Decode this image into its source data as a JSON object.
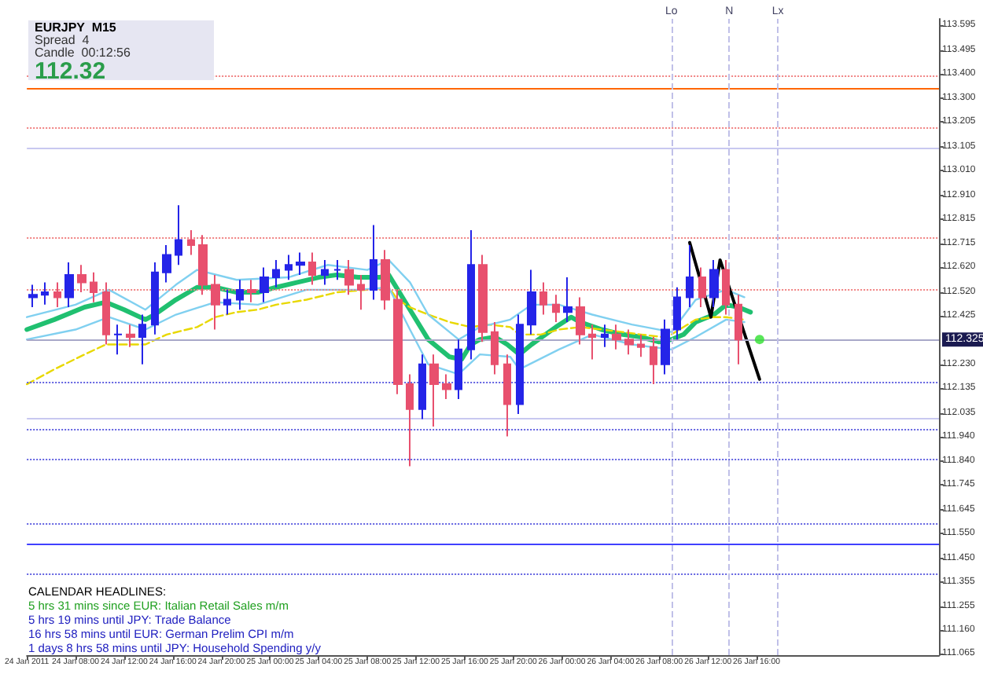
{
  "chart_data": {
    "type": "candlestick",
    "title": "EURJPY  M15",
    "annotations": [
      "Spread  4",
      "Candle  00:12:56",
      "112.32",
      "CALENDAR HEADLINES:",
      "5 hrs 31 mins since EUR: Italian Retail Sales m/m",
      "5 hrs 19 mins until JPY: Trade Balance",
      "16 hrs 58 mins until EUR: German Prelim CPI m/m",
      "1 days 8 hrs 58 mins until JPY: Household Spending y/y"
    ],
    "xlim": [
      "2011-01-24T04:00",
      "2011-01-27T07:00"
    ],
    "xticks": [
      {
        "value": "2011-01-24T04:00",
        "label": "24 Jan 2011"
      },
      {
        "value": "2011-01-24T08:00",
        "label": "24 Jan 08:00"
      },
      {
        "value": "2011-01-24T12:00",
        "label": "24 Jan 12:00"
      },
      {
        "value": "2011-01-24T16:00",
        "label": "24 Jan 16:00"
      },
      {
        "value": "2011-01-24T20:00",
        "label": "24 Jan 20:00"
      },
      {
        "value": "2011-01-25T00:00",
        "label": "25 Jan 00:00"
      },
      {
        "value": "2011-01-25T04:00",
        "label": "25 Jan 04:00"
      },
      {
        "value": "2011-01-25T08:00",
        "label": "25 Jan 08:00"
      },
      {
        "value": "2011-01-25T12:00",
        "label": "25 Jan 12:00"
      },
      {
        "value": "2011-01-25T16:00",
        "label": "25 Jan 16:00"
      },
      {
        "value": "2011-01-25T20:00",
        "label": "25 Jan 20:00"
      },
      {
        "value": "2011-01-26T00:00",
        "label": "26 Jan 00:00"
      },
      {
        "value": "2011-01-26T04:00",
        "label": "26 Jan 04:00"
      },
      {
        "value": "2011-01-26T08:00",
        "label": "26 Jan 08:00"
      },
      {
        "value": "2011-01-26T12:00",
        "label": "26 Jan 12:00"
      },
      {
        "value": "2011-01-26T16:00",
        "label": "26 Jan 16:00"
      }
    ],
    "ylim": [
      111.06,
      113.62
    ],
    "yticks": [
      {
        "value": 113.595,
        "label": "113.595"
      },
      {
        "value": 113.495,
        "label": "113.495"
      },
      {
        "value": 113.4,
        "label": "113.400"
      },
      {
        "value": 113.3,
        "label": "113.300"
      },
      {
        "value": 113.205,
        "label": "113.205"
      },
      {
        "value": 113.105,
        "label": "113.105"
      },
      {
        "value": 113.01,
        "label": "113.010"
      },
      {
        "value": 112.91,
        "label": "112.910"
      },
      {
        "value": 112.815,
        "label": "112.815"
      },
      {
        "value": 112.715,
        "label": "112.715"
      },
      {
        "value": 112.62,
        "label": "112.620"
      },
      {
        "value": 112.52,
        "label": "112.520"
      },
      {
        "value": 112.425,
        "label": "112.425"
      },
      {
        "value": 112.23,
        "label": "112.230"
      },
      {
        "value": 112.135,
        "label": "112.135"
      },
      {
        "value": 112.035,
        "label": "112.035"
      },
      {
        "value": 111.94,
        "label": "111.940"
      },
      {
        "value": 111.84,
        "label": "111.840"
      },
      {
        "value": 111.745,
        "label": "111.745"
      },
      {
        "value": 111.645,
        "label": "111.645"
      },
      {
        "value": 111.55,
        "label": "111.550"
      },
      {
        "value": 111.45,
        "label": "111.450"
      },
      {
        "value": 111.355,
        "label": "111.355"
      },
      {
        "value": 111.255,
        "label": "111.255"
      },
      {
        "value": 111.16,
        "label": "111.160"
      },
      {
        "value": 111.065,
        "label": "111.065"
      }
    ],
    "ref_lines": [
      {
        "axis": "y",
        "value": 113.39,
        "label": null,
        "color": "#f08080",
        "line_style": "dotted"
      },
      {
        "axis": "y",
        "value": 113.34,
        "label": null,
        "color": "#ff6600",
        "line_style": "solid"
      },
      {
        "axis": "y",
        "value": 113.18,
        "label": null,
        "color": "#f08080",
        "line_style": "dotted"
      },
      {
        "axis": "y",
        "value": 113.1,
        "label": null,
        "color": "#c8c8f0",
        "line_style": "solid"
      },
      {
        "axis": "y",
        "value": 112.74,
        "label": null,
        "color": "#f08080",
        "line_style": "dotted"
      },
      {
        "axis": "y",
        "value": 112.53,
        "label": null,
        "color": "#f08080",
        "line_style": "dotted"
      },
      {
        "axis": "y",
        "value": 112.325,
        "label": "112.325",
        "color": "#a8a8c8",
        "line_style": "solid"
      },
      {
        "axis": "y",
        "value": 112.16,
        "label": null,
        "color": "#6060e0",
        "line_style": "dotted"
      },
      {
        "axis": "y",
        "value": 112.01,
        "label": null,
        "color": "#c8c8f0",
        "line_style": "solid"
      },
      {
        "axis": "y",
        "value": 111.97,
        "label": null,
        "color": "#6060e0",
        "line_style": "dotted"
      },
      {
        "axis": "y",
        "value": 111.85,
        "label": null,
        "color": "#6060e0",
        "line_style": "dotted"
      },
      {
        "axis": "y",
        "value": 111.59,
        "label": null,
        "color": "#6060e0",
        "line_style": "dotted"
      },
      {
        "axis": "y",
        "value": 111.51,
        "label": null,
        "color": "#4040ff",
        "line_style": "solid"
      },
      {
        "axis": "y",
        "value": 111.39,
        "label": null,
        "color": "#6060e0",
        "line_style": "dotted"
      },
      {
        "axis": "x",
        "value": "2011-01-26T09:00",
        "label": "Lo",
        "color": "#c0c0e8",
        "line_style": "dashed"
      },
      {
        "axis": "x",
        "value": "2011-01-26T13:45",
        "label": "N",
        "color": "#c0c0e8",
        "line_style": "dashed"
      },
      {
        "axis": "x",
        "value": "2011-01-26T17:45",
        "label": "Lx",
        "color": "#c0c0e8",
        "line_style": "dashed"
      }
    ],
    "series": [
      {
        "x": [
          "2011-01-24T04:30",
          "2011-01-24T05:30",
          "2011-01-24T06:30",
          "2011-01-24T07:30",
          "2011-01-24T08:30",
          "2011-01-24T09:30",
          "2011-01-24T10:30",
          "2011-01-24T11:30",
          "2011-01-24T12:30",
          "2011-01-24T13:30",
          "2011-01-24T14:30",
          "2011-01-24T15:30",
          "2011-01-24T16:30",
          "2011-01-24T17:30",
          "2011-01-24T18:30",
          "2011-01-24T19:30",
          "2011-01-24T20:30",
          "2011-01-24T21:30",
          "2011-01-24T22:30",
          "2011-01-24T23:30",
          "2011-01-25T00:30",
          "2011-01-25T01:30",
          "2011-01-25T02:30",
          "2011-01-25T03:30",
          "2011-01-25T04:30",
          "2011-01-25T05:30",
          "2011-01-25T06:30",
          "2011-01-25T07:30",
          "2011-01-25T08:30",
          "2011-01-25T09:30",
          "2011-01-25T10:30",
          "2011-01-25T11:30",
          "2011-01-25T12:30",
          "2011-01-25T13:30",
          "2011-01-25T14:30",
          "2011-01-25T15:30",
          "2011-01-25T16:30",
          "2011-01-25T17:30",
          "2011-01-25T18:30",
          "2011-01-25T19:30",
          "2011-01-25T20:30",
          "2011-01-25T21:30",
          "2011-01-25T22:30",
          "2011-01-25T23:30",
          "2011-01-26T00:30",
          "2011-01-26T01:30",
          "2011-01-26T02:30",
          "2011-01-26T03:30",
          "2011-01-26T04:30",
          "2011-01-26T05:30",
          "2011-01-26T06:30",
          "2011-01-26T07:30",
          "2011-01-26T08:30",
          "2011-01-26T09:30",
          "2011-01-26T10:30",
          "2011-01-26T11:30",
          "2011-01-26T12:30",
          "2011-01-26T13:30",
          "2011-01-26T14:30"
        ],
        "ohlc": [
          [
            112.5,
            112.55,
            112.46,
            112.51
          ],
          [
            112.51,
            112.56,
            112.47,
            112.52
          ],
          [
            112.52,
            112.56,
            112.46,
            112.5
          ],
          [
            112.5,
            112.64,
            112.46,
            112.59
          ],
          [
            112.59,
            112.63,
            112.52,
            112.56
          ],
          [
            112.56,
            112.6,
            112.48,
            112.52
          ],
          [
            112.52,
            112.56,
            112.31,
            112.35
          ],
          [
            112.35,
            112.39,
            112.27,
            112.35
          ],
          [
            112.35,
            112.39,
            112.3,
            112.34
          ],
          [
            112.34,
            112.43,
            112.23,
            112.39
          ],
          [
            112.39,
            112.64,
            112.35,
            112.6
          ],
          [
            112.6,
            112.71,
            112.56,
            112.67
          ],
          [
            112.67,
            112.87,
            112.63,
            112.73
          ],
          [
            112.73,
            112.77,
            112.67,
            112.71
          ],
          [
            112.71,
            112.75,
            112.51,
            112.55
          ],
          [
            112.55,
            112.59,
            112.37,
            112.47
          ],
          [
            112.47,
            112.53,
            112.43,
            112.49
          ],
          [
            112.49,
            112.57,
            112.45,
            112.53
          ],
          [
            112.53,
            112.57,
            112.48,
            112.52
          ],
          [
            112.52,
            112.62,
            112.48,
            112.58
          ],
          [
            112.58,
            112.65,
            112.54,
            112.61
          ],
          [
            112.61,
            112.67,
            112.57,
            112.63
          ],
          [
            112.63,
            112.68,
            112.59,
            112.64
          ],
          [
            112.64,
            112.68,
            112.55,
            112.59
          ],
          [
            112.59,
            112.65,
            112.55,
            112.61
          ],
          [
            112.61,
            112.65,
            112.57,
            112.61
          ],
          [
            112.61,
            112.65,
            112.51,
            112.55
          ],
          [
            112.55,
            112.59,
            112.45,
            112.53
          ],
          [
            112.53,
            112.79,
            112.49,
            112.65
          ],
          [
            112.65,
            112.69,
            112.45,
            112.49
          ],
          [
            112.49,
            112.53,
            112.11,
            112.15
          ],
          [
            112.15,
            112.19,
            111.82,
            112.05
          ],
          [
            112.05,
            112.27,
            112.01,
            112.23
          ],
          [
            112.23,
            112.27,
            111.98,
            112.15
          ],
          [
            112.15,
            112.19,
            112.09,
            112.13
          ],
          [
            112.13,
            112.33,
            112.09,
            112.29
          ],
          [
            112.29,
            112.77,
            112.25,
            112.63
          ],
          [
            112.63,
            112.67,
            112.32,
            112.36
          ],
          [
            112.36,
            112.4,
            112.19,
            112.23
          ],
          [
            112.23,
            112.27,
            111.94,
            112.07
          ],
          [
            112.07,
            112.43,
            112.03,
            112.39
          ],
          [
            112.39,
            112.61,
            112.35,
            112.52
          ],
          [
            112.52,
            112.56,
            112.43,
            112.47
          ],
          [
            112.47,
            112.51,
            112.4,
            112.44
          ],
          [
            112.44,
            112.58,
            112.4,
            112.46
          ],
          [
            112.46,
            112.5,
            112.31,
            112.35
          ],
          [
            112.35,
            112.39,
            112.25,
            112.34
          ],
          [
            112.34,
            112.39,
            112.3,
            112.35
          ],
          [
            112.35,
            112.39,
            112.29,
            112.33
          ],
          [
            112.33,
            112.37,
            112.27,
            112.31
          ],
          [
            112.31,
            112.35,
            112.26,
            112.3
          ],
          [
            112.3,
            112.34,
            112.15,
            112.23
          ],
          [
            112.23,
            112.41,
            112.19,
            112.37
          ],
          [
            112.37,
            112.54,
            112.33,
            112.5
          ],
          [
            112.5,
            112.71,
            112.46,
            112.58
          ],
          [
            112.58,
            112.62,
            112.46,
            112.5
          ],
          [
            112.5,
            112.65,
            112.46,
            112.61
          ],
          [
            112.61,
            112.65,
            112.43,
            112.47
          ],
          [
            112.47,
            112.51,
            112.23,
            112.33
          ]
        ],
        "colors": [
          "#2424e8",
          "#2424e8",
          "#e8506e",
          "#2424e8",
          "#e8506e",
          "#e8506e",
          "#e8506e",
          "#2424e8",
          "#e8506e",
          "#2424e8",
          "#2424e8",
          "#2424e8",
          "#2424e8",
          "#e8506e",
          "#e8506e",
          "#e8506e",
          "#2424e8",
          "#2424e8",
          "#e8506e",
          "#2424e8",
          "#2424e8",
          "#2424e8",
          "#2424e8",
          "#e8506e",
          "#2424e8",
          "#2424e8",
          "#e8506e",
          "#e8506e",
          "#2424e8",
          "#e8506e",
          "#e8506e",
          "#e8506e",
          "#2424e8",
          "#e8506e",
          "#e8506e",
          "#2424e8",
          "#2424e8",
          "#e8506e",
          "#e8506e",
          "#e8506e",
          "#2424e8",
          "#2424e8",
          "#e8506e",
          "#e8506e",
          "#2424e8",
          "#e8506e",
          "#e8506e",
          "#2424e8",
          "#e8506e",
          "#e8506e",
          "#e8506e",
          "#e8506e",
          "#2424e8",
          "#2424e8",
          "#2424e8",
          "#e8506e",
          "#2424e8",
          "#e8506e",
          "#e8506e"
        ]
      },
      {
        "type": "line",
        "color": "#20c070",
        "line_style": "solid",
        "x": [
          "2011-01-24T04:00",
          "2011-01-24T06:15",
          "2011-01-24T08:45",
          "2011-01-24T10:30",
          "2011-01-24T12:00",
          "2011-01-24T13:45",
          "2011-01-24T14:30",
          "2011-01-24T16:15",
          "2011-01-24T18:00",
          "2011-01-24T19:30",
          "2011-01-24T21:15",
          "2011-01-24T23:00",
          "2011-01-25T00:30",
          "2011-01-25T02:15",
          "2011-01-25T04:00",
          "2011-01-25T05:30",
          "2011-01-25T07:15",
          "2011-01-25T09:00",
          "2011-01-25T09:45",
          "2011-01-25T10:30",
          "2011-01-25T11:30",
          "2011-01-25T13:00",
          "2011-01-25T14:45",
          "2011-01-25T15:45",
          "2011-01-25T16:30",
          "2011-01-25T17:15",
          "2011-01-25T18:30",
          "2011-01-25T19:30",
          "2011-01-25T20:30",
          "2011-01-25T21:30",
          "2011-01-25T23:30",
          "2011-01-26T00:45",
          "2011-01-26T01:30",
          "2011-01-26T03:15",
          "2011-01-26T05:00",
          "2011-01-26T06:30",
          "2011-01-26T08:00",
          "2011-01-26T09:00",
          "2011-01-26T10:00",
          "2011-01-26T11:00",
          "2011-01-26T12:30",
          "2011-01-26T13:30",
          "2011-01-26T14:30",
          "2011-01-26T15:30"
        ],
        "values": [
          112.37,
          112.41,
          112.46,
          112.48,
          112.45,
          112.41,
          112.43,
          112.49,
          112.54,
          112.54,
          112.52,
          112.52,
          112.54,
          112.56,
          112.58,
          112.59,
          112.58,
          112.58,
          112.59,
          112.53,
          112.45,
          112.33,
          112.26,
          112.25,
          112.31,
          112.33,
          112.34,
          112.31,
          112.27,
          112.31,
          112.38,
          112.42,
          112.4,
          112.37,
          112.35,
          112.34,
          112.32,
          112.33,
          112.35,
          112.4,
          112.43,
          112.47,
          112.46,
          112.44
        ]
      },
      {
        "type": "line",
        "color": "#e8d800",
        "line_style": "dashed",
        "x": [
          "2011-01-24T04:00",
          "2011-01-24T06:15",
          "2011-01-24T08:45",
          "2011-01-24T10:30",
          "2011-01-24T12:00",
          "2011-01-24T13:45",
          "2011-01-24T15:30",
          "2011-01-24T18:00",
          "2011-01-24T19:30",
          "2011-01-24T21:15",
          "2011-01-24T23:00",
          "2011-01-25T00:30",
          "2011-01-25T03:00",
          "2011-01-25T05:30",
          "2011-01-25T08:00",
          "2011-01-25T09:45",
          "2011-01-25T10:30",
          "2011-01-25T11:30",
          "2011-01-25T13:00",
          "2011-01-25T14:45",
          "2011-01-25T16:30",
          "2011-01-25T18:00",
          "2011-01-25T19:45",
          "2011-01-25T20:30",
          "2011-01-25T22:15",
          "2011-01-25T23:45",
          "2011-01-26T01:30",
          "2011-01-26T03:15",
          "2011-01-26T05:00",
          "2011-01-26T06:30",
          "2011-01-26T08:15",
          "2011-01-26T09:00",
          "2011-01-26T10:00",
          "2011-01-26T11:00",
          "2011-01-26T12:30",
          "2011-01-26T13:30",
          "2011-01-26T15:00"
        ],
        "values": [
          112.15,
          112.21,
          112.27,
          112.31,
          112.31,
          112.31,
          112.35,
          112.38,
          112.42,
          112.44,
          112.45,
          112.47,
          112.49,
          112.52,
          112.53,
          112.54,
          112.49,
          112.46,
          112.43,
          112.4,
          112.38,
          112.39,
          112.38,
          112.35,
          112.35,
          112.37,
          112.38,
          112.37,
          112.36,
          112.35,
          112.34,
          112.35,
          112.38,
          112.41,
          112.42,
          112.42,
          112.41
        ]
      },
      {
        "type": "line",
        "color": "#80d0f0",
        "line_style": "solid",
        "x": [
          "2011-01-24T04:00",
          "2011-01-24T08:00",
          "2011-01-24T10:45",
          "2011-01-24T13:45",
          "2011-01-24T16:15",
          "2011-01-24T18:00",
          "2011-01-24T21:15",
          "2011-01-25T01:30",
          "2011-01-25T04:45",
          "2011-01-25T08:00",
          "2011-01-25T09:45",
          "2011-01-25T11:30",
          "2011-01-25T13:00",
          "2011-01-25T15:30",
          "2011-01-25T17:15",
          "2011-01-25T19:45",
          "2011-01-25T21:30",
          "2011-01-25T23:45",
          "2011-01-26T02:30",
          "2011-01-26T05:45",
          "2011-01-26T09:00",
          "2011-01-26T11:00",
          "2011-01-26T13:30",
          "2011-01-26T15:00"
        ],
        "values": [
          112.42,
          112.47,
          112.53,
          112.45,
          112.55,
          112.61,
          112.57,
          112.58,
          112.63,
          112.61,
          112.65,
          112.56,
          112.43,
          112.33,
          112.38,
          112.41,
          112.47,
          112.47,
          112.43,
          112.39,
          112.36,
          112.49,
          112.53,
          112.5
        ]
      },
      {
        "type": "line",
        "color": "#80d0f0",
        "line_style": "solid",
        "x": [
          "2011-01-24T04:00",
          "2011-01-24T08:00",
          "2011-01-24T10:45",
          "2011-01-24T13:45",
          "2011-01-24T16:15",
          "2011-01-24T19:30",
          "2011-01-24T23:00",
          "2011-01-25T03:00",
          "2011-01-25T07:15",
          "2011-01-25T09:45",
          "2011-01-25T11:30",
          "2011-01-25T13:00",
          "2011-01-25T15:30",
          "2011-01-25T17:15",
          "2011-01-25T19:45",
          "2011-01-25T20:30",
          "2011-01-25T23:45",
          "2011-01-26T02:30",
          "2011-01-26T05:45",
          "2011-01-26T09:00",
          "2011-01-26T11:00",
          "2011-01-26T13:30",
          "2011-01-26T15:00"
        ],
        "values": [
          112.33,
          112.37,
          112.42,
          112.37,
          112.43,
          112.48,
          112.47,
          112.53,
          112.53,
          112.54,
          112.37,
          112.23,
          112.19,
          112.27,
          112.26,
          112.21,
          112.29,
          112.35,
          112.31,
          112.29,
          112.34,
          112.41,
          112.4
        ]
      },
      {
        "type": "line",
        "color": "#000000",
        "line_style": "solid",
        "x": [
          "2011-01-26T10:30",
          "2011-01-26T12:15",
          "2011-01-26T13:00",
          "2011-01-26T16:15"
        ],
        "values": [
          112.72,
          112.42,
          112.65,
          112.17
        ]
      },
      {
        "type": "scatter",
        "color": "#30e030",
        "marker": "circle",
        "x": [
          "2011-01-26T16:15"
        ],
        "values": [
          112.33
        ]
      }
    ]
  }
}
